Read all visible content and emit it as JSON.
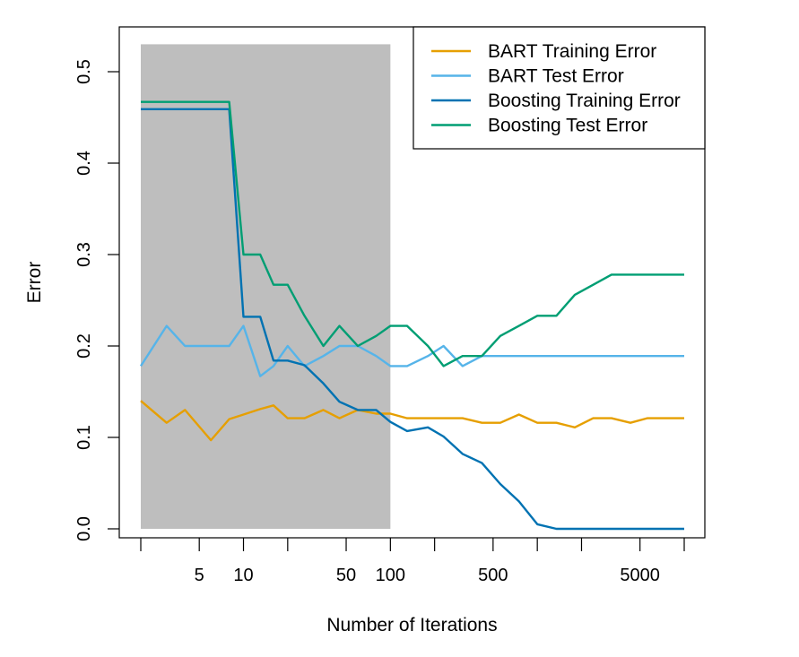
{
  "chart_data": {
    "type": "line",
    "xlabel": "Number of Iterations",
    "ylabel": "Error",
    "x_scale": "log",
    "xlim": [
      1,
      10000
    ],
    "ylim": [
      0,
      0.55
    ],
    "x_ticks": [
      2,
      5,
      10,
      20,
      50,
      100,
      200,
      500,
      1000,
      2000,
      5000,
      10000
    ],
    "x_tick_labels": [
      "",
      "5",
      "10",
      "",
      "50",
      "100",
      "",
      "500",
      "",
      "",
      "5000",
      ""
    ],
    "y_ticks": [
      0,
      0.1,
      0.2,
      0.3,
      0.4,
      0.5
    ],
    "y_tick_labels": [
      "0.0",
      "0.1",
      "0.2",
      "0.3",
      "0.4",
      "0.5"
    ],
    "shaded_region": {
      "x": [
        2,
        100
      ],
      "y": [
        0,
        0.53
      ],
      "color": "#bebebe"
    },
    "legend_position": "top-right",
    "series": [
      {
        "name": "BART Training Error",
        "color": "#E69F00",
        "x": [
          2,
          3,
          4,
          6,
          8,
          10,
          13,
          16,
          20,
          26,
          35,
          45,
          60,
          80,
          100,
          130,
          180,
          230,
          310,
          420,
          560,
          750,
          1000,
          1350,
          1800,
          2400,
          3200,
          4300,
          5600,
          7500,
          10000
        ],
        "y": [
          0.14,
          0.116,
          0.13,
          0.097,
          0.12,
          0.125,
          0.131,
          0.135,
          0.121,
          0.121,
          0.13,
          0.121,
          0.13,
          0.126,
          0.126,
          0.121,
          0.121,
          0.121,
          0.121,
          0.116,
          0.116,
          0.125,
          0.116,
          0.116,
          0.111,
          0.121,
          0.121,
          0.116,
          0.121,
          0.121,
          0.121
        ]
      },
      {
        "name": "BART Test Error",
        "color": "#56B4E9",
        "x": [
          2,
          3,
          4,
          6,
          8,
          10,
          13,
          16,
          20,
          26,
          35,
          45,
          60,
          80,
          100,
          130,
          180,
          230,
          310,
          420,
          560,
          750,
          1000,
          1350,
          1800,
          2400,
          3200,
          4300,
          5600,
          7500,
          10000
        ],
        "y": [
          0.178,
          0.222,
          0.2,
          0.2,
          0.2,
          0.222,
          0.167,
          0.178,
          0.2,
          0.178,
          0.189,
          0.2,
          0.2,
          0.189,
          0.178,
          0.178,
          0.189,
          0.2,
          0.178,
          0.189,
          0.189,
          0.189,
          0.189,
          0.189,
          0.189,
          0.189,
          0.189,
          0.189,
          0.189,
          0.189,
          0.189
        ]
      },
      {
        "name": "Boosting Training Error",
        "color": "#0072B2",
        "x": [
          2,
          3,
          4,
          6,
          8,
          10,
          13,
          16,
          20,
          26,
          35,
          45,
          60,
          80,
          100,
          130,
          180,
          230,
          310,
          420,
          560,
          750,
          1000,
          1350,
          1800,
          2400,
          3200,
          4300,
          5600,
          7500,
          10000
        ],
        "y": [
          0.459,
          0.459,
          0.459,
          0.459,
          0.459,
          0.232,
          0.232,
          0.184,
          0.184,
          0.179,
          0.159,
          0.139,
          0.13,
          0.13,
          0.117,
          0.107,
          0.111,
          0.101,
          0.082,
          0.072,
          0.049,
          0.03,
          0.005,
          0.0,
          0.0,
          0.0,
          0.0,
          0.0,
          0.0,
          0.0,
          0.0
        ]
      },
      {
        "name": "Boosting Test Error",
        "color": "#009E73",
        "x": [
          2,
          3,
          4,
          6,
          8,
          10,
          13,
          16,
          20,
          26,
          35,
          45,
          60,
          80,
          100,
          130,
          180,
          230,
          310,
          420,
          560,
          750,
          1000,
          1350,
          1800,
          2400,
          3200,
          4300,
          5600,
          7500,
          10000
        ],
        "y": [
          0.467,
          0.467,
          0.467,
          0.467,
          0.467,
          0.3,
          0.3,
          0.267,
          0.267,
          0.233,
          0.2,
          0.222,
          0.2,
          0.211,
          0.222,
          0.222,
          0.2,
          0.178,
          0.189,
          0.189,
          0.211,
          0.222,
          0.233,
          0.233,
          0.256,
          0.267,
          0.278,
          0.278,
          0.278,
          0.278,
          0.278
        ]
      }
    ]
  }
}
